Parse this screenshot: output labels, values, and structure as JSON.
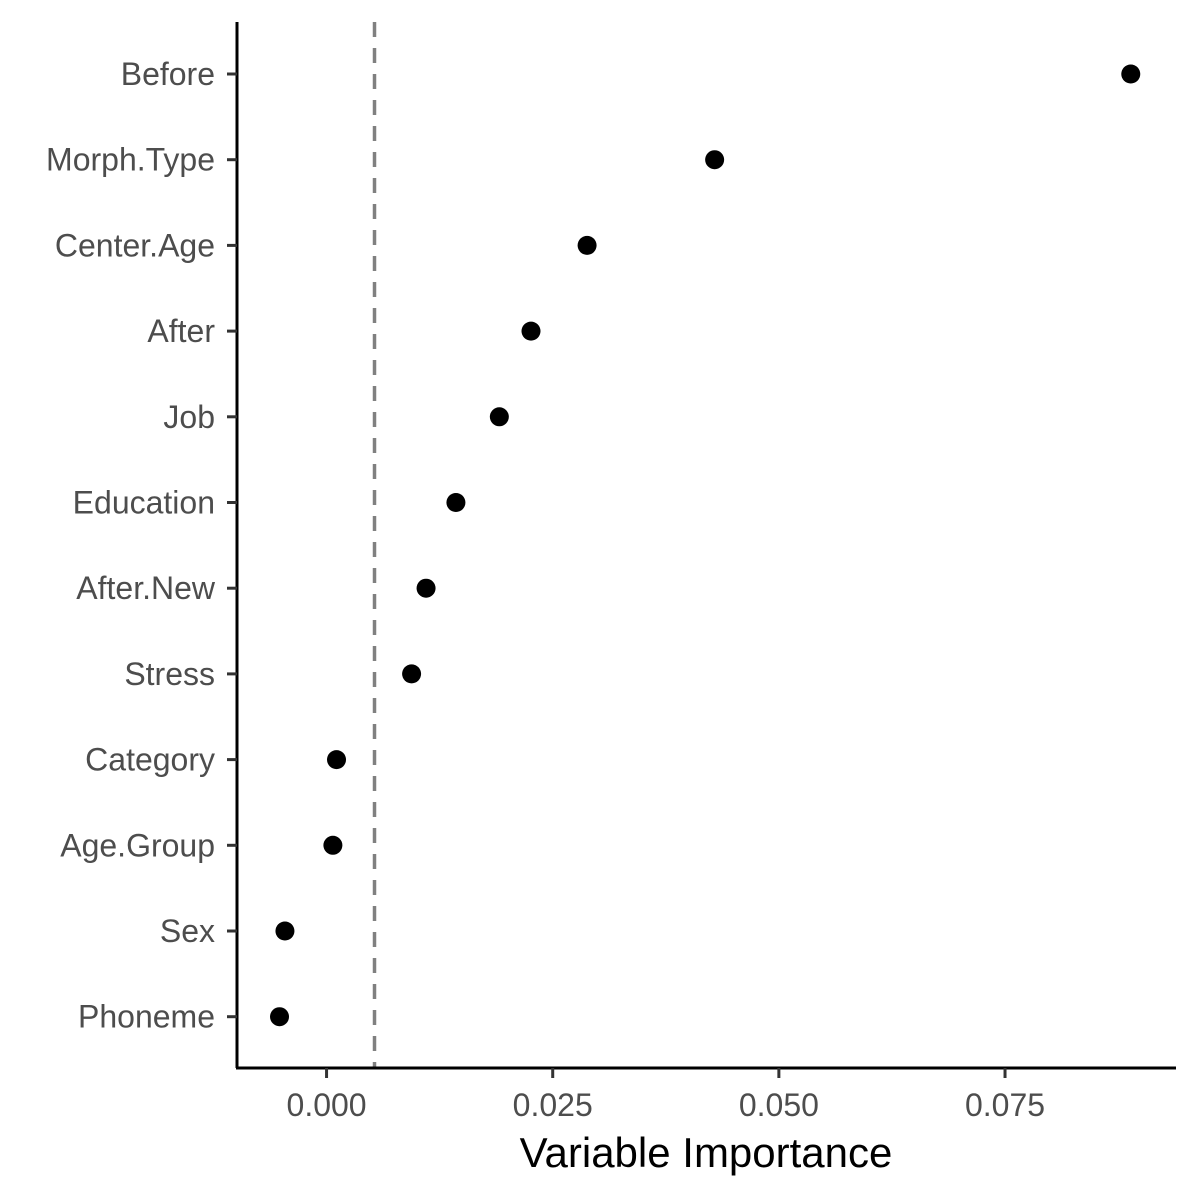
{
  "chart_data": {
    "type": "scatter",
    "title": "",
    "xlabel": "Variable Importance",
    "ylabel": "",
    "categories": [
      "Before",
      "Morph.Type",
      "Center.Age",
      "After",
      "Job",
      "Education",
      "After.New",
      "Stress",
      "Category",
      "Age.Group",
      "Sex",
      "Phoneme"
    ],
    "values": [
      0.0889,
      0.0429,
      0.0288,
      0.0226,
      0.0191,
      0.0143,
      0.011,
      0.0094,
      0.0011,
      0.0007,
      -0.0046,
      -0.0052
    ],
    "x_ticks": [
      0.0,
      0.025,
      0.05,
      0.075
    ],
    "x_tick_labels": [
      "0.000",
      "0.025",
      "0.050",
      "0.075"
    ],
    "xlim": [
      -0.0099,
      0.0939
    ],
    "reference_line": {
      "value": 0.0053,
      "style": "dashed",
      "color": "#808080"
    },
    "point_color": "#000000",
    "grid": false,
    "legend": "none"
  }
}
